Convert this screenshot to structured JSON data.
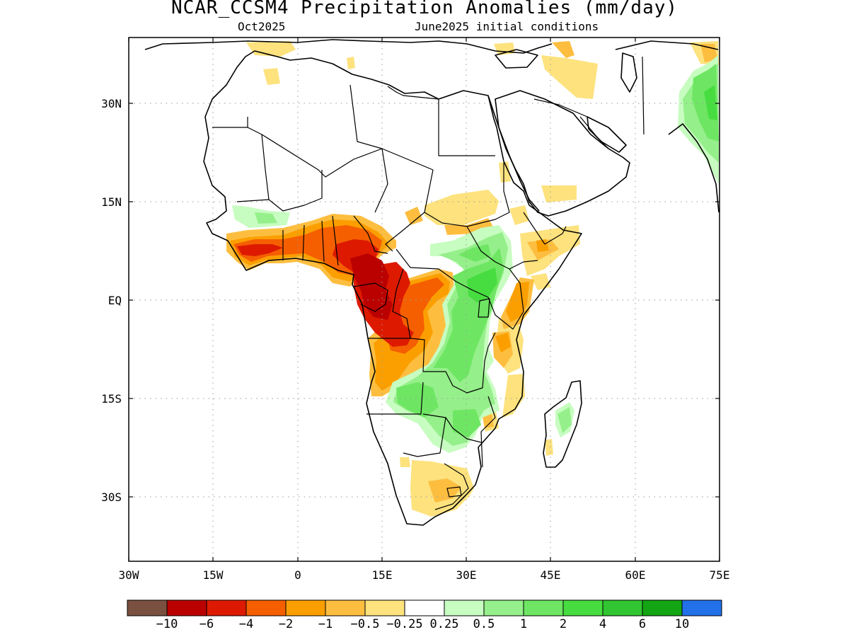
{
  "title": "NCAR_CCSM4 Precipitation Anomalies (mm/day)",
  "subtitle_left": "Oct2025",
  "subtitle_right": "June2025 initial conditions",
  "lat_labels": [
    "30N",
    "15N",
    "EQ",
    "15S",
    "30S"
  ],
  "lon_labels": [
    "30W",
    "15W",
    "0",
    "15E",
    "30E",
    "45E",
    "60E",
    "75E"
  ],
  "colorbar": {
    "colors": [
      "#7a5040",
      "#bb0000",
      "#dd1a00",
      "#f55f00",
      "#fb9f00",
      "#fdbe40",
      "#fde27e",
      "#ffffff",
      "#c7fdc0",
      "#95ef8a",
      "#6ee663",
      "#47dd40",
      "#31c531",
      "#14a514",
      "#2271e9"
    ],
    "labels": [
      "−10",
      "−6",
      "−4",
      "−2",
      "−1",
      "−0.5",
      "−0.25",
      "0.25",
      "0.5",
      "1",
      "2",
      "4",
      "6",
      "10"
    ]
  },
  "legend_colors": {
    "strong_dry": "#bb0000",
    "dry": "#dd1a00",
    "moderate_dry": "#f55f00",
    "mild_dry": "#fb9f00",
    "slight_dry": "#fdbe40",
    "very_slight_dry": "#fde27e",
    "slight_wet": "#c7fdc0",
    "mild_wet": "#95ef8a",
    "moderate_wet": "#6ee663",
    "wet": "#47dd40"
  }
}
